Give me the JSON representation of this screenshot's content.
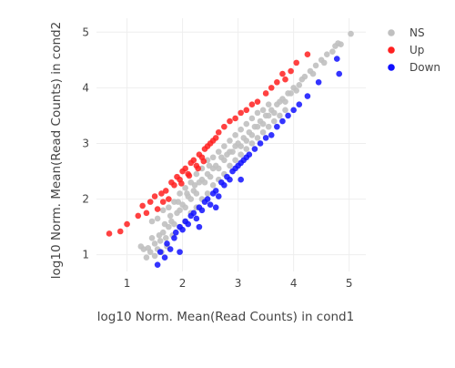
{
  "chart_data": {
    "type": "scatter",
    "xlabel": "log10 Norm. Mean(Read Counts) in cond1",
    "ylabel": "log10 Norm. Mean(Read Counts) in cond2",
    "xlim": [
      0.45,
      5.3
    ],
    "ylim": [
      0.7,
      5.25
    ],
    "x_ticks": [
      1,
      2,
      3,
      4,
      5
    ],
    "y_ticks": [
      1,
      2,
      3,
      4,
      5
    ],
    "grid": true,
    "legend_position": "top-right",
    "series": [
      {
        "name": "NS",
        "color": "#c0c0c0",
        "points": [
          [
            1.25,
            1.15
          ],
          [
            1.3,
            1.1
          ],
          [
            1.38,
            1.12
          ],
          [
            1.42,
            1.05
          ],
          [
            1.5,
            1.2
          ],
          [
            1.55,
            1.1
          ],
          [
            1.45,
            1.3
          ],
          [
            1.6,
            1.25
          ],
          [
            1.65,
            1.4
          ],
          [
            1.58,
            1.35
          ],
          [
            1.7,
            1.3
          ],
          [
            1.75,
            1.5
          ],
          [
            1.68,
            1.55
          ],
          [
            1.8,
            1.6
          ],
          [
            1.85,
            1.55
          ],
          [
            1.9,
            1.75
          ],
          [
            1.78,
            1.7
          ],
          [
            1.95,
            1.8
          ],
          [
            2.0,
            1.9
          ],
          [
            1.92,
            1.95
          ],
          [
            2.05,
            1.85
          ],
          [
            2.1,
            2.05
          ],
          [
            2.15,
            2.0
          ],
          [
            2.08,
            2.1
          ],
          [
            2.2,
            2.15
          ],
          [
            2.25,
            2.1
          ],
          [
            2.3,
            2.3
          ],
          [
            2.22,
            2.25
          ],
          [
            2.35,
            2.35
          ],
          [
            2.4,
            2.3
          ],
          [
            2.45,
            2.45
          ],
          [
            2.5,
            2.4
          ],
          [
            2.55,
            2.55
          ],
          [
            2.48,
            2.6
          ],
          [
            2.6,
            2.6
          ],
          [
            2.65,
            2.55
          ],
          [
            2.7,
            2.75
          ],
          [
            2.75,
            2.7
          ],
          [
            2.8,
            2.8
          ],
          [
            2.85,
            2.85
          ],
          [
            2.9,
            2.85
          ],
          [
            2.95,
            2.95
          ],
          [
            3.0,
            3.0
          ],
          [
            3.05,
            2.95
          ],
          [
            3.1,
            3.1
          ],
          [
            3.15,
            3.05
          ],
          [
            3.2,
            3.2
          ],
          [
            3.25,
            3.15
          ],
          [
            3.3,
            3.3
          ],
          [
            3.35,
            3.3
          ],
          [
            3.4,
            3.4
          ],
          [
            3.45,
            3.35
          ],
          [
            3.5,
            3.5
          ],
          [
            3.55,
            3.5
          ],
          [
            3.6,
            3.6
          ],
          [
            3.65,
            3.55
          ],
          [
            3.7,
            3.7
          ],
          [
            3.75,
            3.75
          ],
          [
            3.8,
            3.8
          ],
          [
            3.85,
            3.75
          ],
          [
            3.9,
            3.9
          ],
          [
            3.95,
            3.9
          ],
          [
            4.0,
            4.0
          ],
          [
            4.05,
            3.95
          ],
          [
            4.1,
            4.05
          ],
          [
            4.15,
            4.15
          ],
          [
            4.2,
            4.2
          ],
          [
            4.3,
            4.3
          ],
          [
            4.35,
            4.25
          ],
          [
            4.4,
            4.4
          ],
          [
            4.5,
            4.5
          ],
          [
            4.55,
            4.45
          ],
          [
            4.6,
            4.6
          ],
          [
            4.7,
            4.65
          ],
          [
            4.75,
            4.75
          ],
          [
            4.8,
            4.8
          ],
          [
            4.85,
            4.78
          ],
          [
            5.03,
            4.97
          ],
          [
            1.45,
            1.6
          ],
          [
            1.55,
            1.65
          ],
          [
            1.65,
            1.8
          ],
          [
            1.75,
            1.85
          ],
          [
            1.85,
            1.95
          ],
          [
            1.95,
            2.1
          ],
          [
            2.05,
            2.2
          ],
          [
            2.15,
            2.3
          ],
          [
            2.25,
            2.45
          ],
          [
            2.35,
            2.55
          ],
          [
            2.45,
            2.7
          ],
          [
            2.55,
            2.75
          ],
          [
            2.65,
            2.85
          ],
          [
            2.75,
            2.95
          ],
          [
            2.85,
            3.05
          ],
          [
            2.95,
            3.15
          ],
          [
            3.05,
            3.25
          ],
          [
            3.15,
            3.35
          ],
          [
            3.25,
            3.45
          ],
          [
            3.35,
            3.55
          ],
          [
            3.45,
            3.6
          ],
          [
            3.55,
            3.7
          ],
          [
            1.35,
            0.95
          ],
          [
            1.5,
            0.98
          ],
          [
            1.62,
            1.05
          ],
          [
            1.72,
            1.15
          ],
          [
            1.82,
            1.35
          ],
          [
            1.95,
            1.5
          ],
          [
            2.05,
            1.6
          ],
          [
            2.15,
            1.75
          ],
          [
            2.25,
            1.85
          ],
          [
            2.35,
            2.0
          ],
          [
            2.45,
            2.1
          ],
          [
            2.55,
            2.25
          ],
          [
            2.65,
            2.35
          ],
          [
            2.75,
            2.45
          ],
          [
            2.85,
            2.6
          ],
          [
            2.95,
            2.7
          ],
          [
            3.05,
            2.8
          ],
          [
            3.15,
            2.9
          ],
          [
            3.25,
            3.0
          ],
          [
            3.35,
            3.1
          ],
          [
            3.45,
            3.2
          ],
          [
            3.55,
            3.3
          ],
          [
            3.65,
            3.4
          ],
          [
            3.75,
            3.5
          ],
          [
            3.85,
            3.6
          ]
        ]
      },
      {
        "name": "Up",
        "color": "#ff2020",
        "points": [
          [
            0.68,
            1.38
          ],
          [
            0.88,
            1.42
          ],
          [
            1.0,
            1.55
          ],
          [
            1.2,
            1.7
          ],
          [
            1.28,
            1.88
          ],
          [
            1.35,
            1.75
          ],
          [
            1.42,
            1.95
          ],
          [
            1.5,
            2.05
          ],
          [
            1.55,
            1.82
          ],
          [
            1.62,
            2.1
          ],
          [
            1.7,
            2.15
          ],
          [
            1.75,
            2.0
          ],
          [
            1.8,
            2.3
          ],
          [
            1.85,
            2.25
          ],
          [
            1.9,
            2.4
          ],
          [
            1.95,
            2.35
          ],
          [
            2.0,
            2.5
          ],
          [
            2.05,
            2.55
          ],
          [
            2.1,
            2.45
          ],
          [
            2.15,
            2.65
          ],
          [
            2.2,
            2.7
          ],
          [
            2.25,
            2.6
          ],
          [
            2.3,
            2.8
          ],
          [
            2.35,
            2.75
          ],
          [
            2.4,
            2.9
          ],
          [
            2.45,
            2.95
          ],
          [
            2.5,
            3.0
          ],
          [
            2.55,
            3.05
          ],
          [
            2.6,
            3.1
          ],
          [
            2.65,
            3.2
          ],
          [
            2.75,
            3.3
          ],
          [
            2.85,
            3.4
          ],
          [
            2.95,
            3.45
          ],
          [
            3.05,
            3.55
          ],
          [
            3.15,
            3.6
          ],
          [
            3.25,
            3.7
          ],
          [
            3.35,
            3.75
          ],
          [
            3.5,
            3.9
          ],
          [
            3.6,
            4.0
          ],
          [
            3.7,
            4.1
          ],
          [
            3.8,
            4.25
          ],
          [
            3.85,
            4.15
          ],
          [
            3.95,
            4.3
          ],
          [
            4.05,
            4.45
          ],
          [
            4.25,
            4.6
          ],
          [
            1.65,
            1.95
          ],
          [
            1.98,
            2.28
          ],
          [
            2.12,
            2.42
          ],
          [
            2.28,
            2.55
          ],
          [
            2.38,
            2.68
          ]
        ]
      },
      {
        "name": "Down",
        "color": "#1010ff",
        "points": [
          [
            1.55,
            0.82
          ],
          [
            1.6,
            1.05
          ],
          [
            1.68,
            0.95
          ],
          [
            1.72,
            1.2
          ],
          [
            1.78,
            1.1
          ],
          [
            1.85,
            1.3
          ],
          [
            1.95,
            1.05
          ],
          [
            1.88,
            1.4
          ],
          [
            1.95,
            1.5
          ],
          [
            2.0,
            1.45
          ],
          [
            2.05,
            1.6
          ],
          [
            2.1,
            1.55
          ],
          [
            2.15,
            1.7
          ],
          [
            2.2,
            1.75
          ],
          [
            2.25,
            1.65
          ],
          [
            2.3,
            1.85
          ],
          [
            2.35,
            1.8
          ],
          [
            2.4,
            1.95
          ],
          [
            2.45,
            2.0
          ],
          [
            2.5,
            1.9
          ],
          [
            2.55,
            2.1
          ],
          [
            2.6,
            2.15
          ],
          [
            2.65,
            2.05
          ],
          [
            2.7,
            2.3
          ],
          [
            2.75,
            2.25
          ],
          [
            2.8,
            2.4
          ],
          [
            2.85,
            2.35
          ],
          [
            2.9,
            2.5
          ],
          [
            2.95,
            2.55
          ],
          [
            3.0,
            2.6
          ],
          [
            3.05,
            2.65
          ],
          [
            3.1,
            2.7
          ],
          [
            3.15,
            2.75
          ],
          [
            3.2,
            2.8
          ],
          [
            3.3,
            2.9
          ],
          [
            3.4,
            3.0
          ],
          [
            3.5,
            3.1
          ],
          [
            3.6,
            3.15
          ],
          [
            3.7,
            3.3
          ],
          [
            3.8,
            3.4
          ],
          [
            3.9,
            3.5
          ],
          [
            4.0,
            3.6
          ],
          [
            4.1,
            3.7
          ],
          [
            4.25,
            3.85
          ],
          [
            4.45,
            4.1
          ],
          [
            4.78,
            4.52
          ],
          [
            4.82,
            4.25
          ],
          [
            2.3,
            1.5
          ],
          [
            2.6,
            1.85
          ],
          [
            3.05,
            2.35
          ]
        ]
      }
    ]
  }
}
